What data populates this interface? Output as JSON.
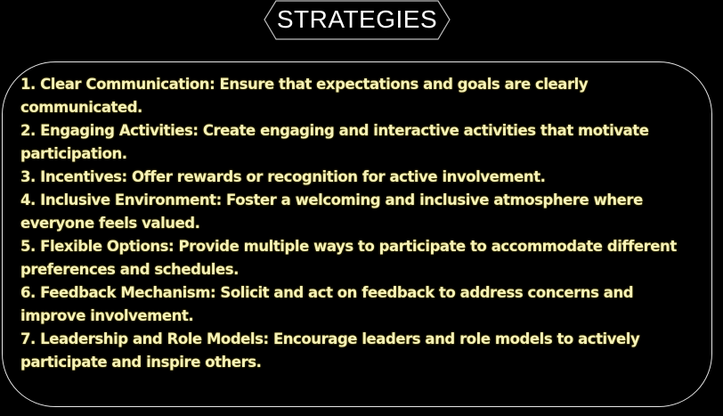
{
  "title": "STRATEGIES",
  "colors": {
    "background": "#000000",
    "title_text": "#ffffff",
    "list_text": "#f6f2b8",
    "panel_border": "#e6e6e6"
  },
  "strategies": [
    "1. Clear Communication: Ensure that expectations and goals are clearly communicated.",
    "2. Engaging Activities: Create engaging and interactive activities that motivate participation.",
    "3. Incentives: Offer rewards or recognition for active involvement.",
    "4. Inclusive Environment: Foster a welcoming and inclusive atmosphere where everyone feels valued.",
    "5. Flexible Options: Provide multiple ways to participate to accommodate different preferences and schedules.",
    "6. Feedback Mechanism: Solicit and act on feedback to address concerns and improve involvement.",
    "7. Leadership and Role Models: Encourage leaders and role models to actively participate and inspire others."
  ]
}
